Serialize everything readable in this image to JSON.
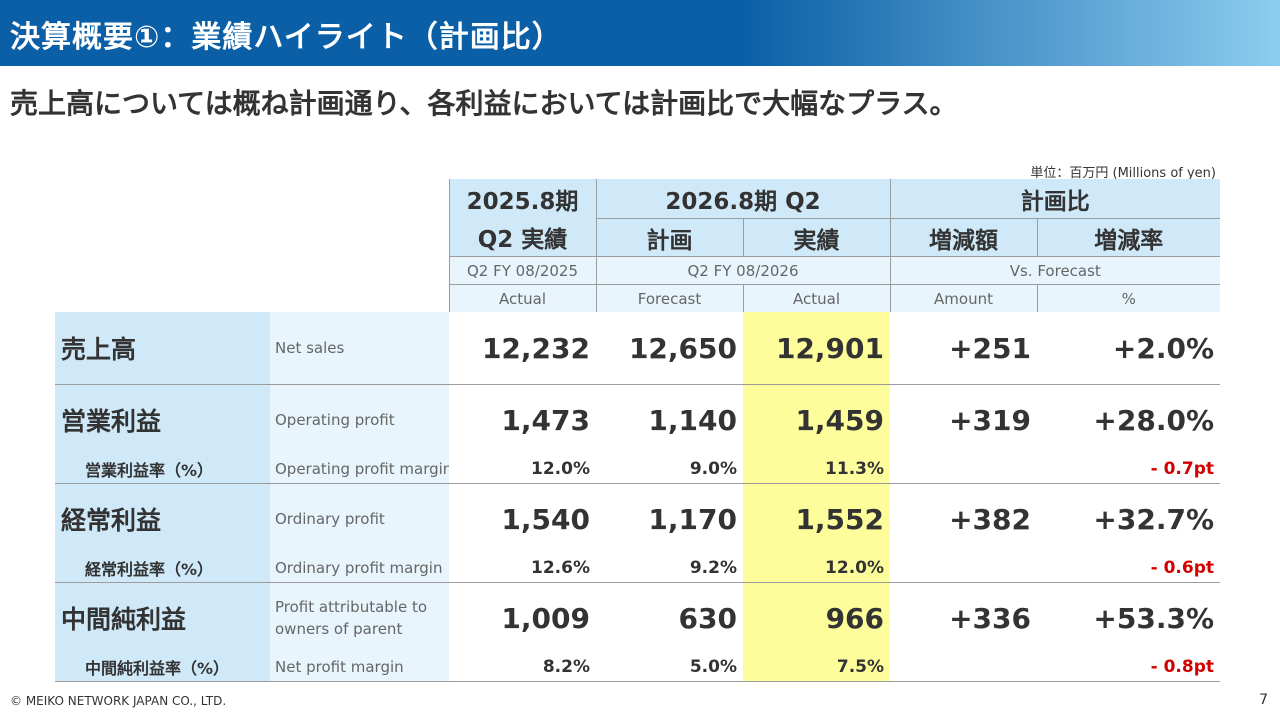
{
  "header": {
    "title": "決算概要①：業績ハイライト（計画比）"
  },
  "subtitle": "売上高については概ね計画通り、各利益においては計画比で大幅なプラス。",
  "unit_note": "単位：百万円 (Millions of yen)",
  "table": {
    "col_headers": {
      "prev_period": "2025.8期",
      "prev_actual_jp": "Q2 実績",
      "curr_period": "2026.8期 Q2",
      "curr_plan_jp": "計画",
      "curr_actual_jp": "実績",
      "vs_plan": "計画比",
      "diff_amount_jp": "増減額",
      "diff_rate_jp": "増減率",
      "prev_en": "Q2 FY 08/2025",
      "curr_en": "Q2 FY 08/2026",
      "vs_en": "Vs. Forecast",
      "actual_en": "Actual",
      "forecast_en": "Forecast",
      "actual_en2": "Actual",
      "amount_en": "Amount",
      "percent_en": "%"
    },
    "rows": {
      "net_sales": {
        "jp": "売上高",
        "en": "Net sales",
        "prev": "12,232",
        "plan": "12,650",
        "actual": "12,901",
        "diff": "+251",
        "rate": "+2.0%"
      },
      "operating_profit": {
        "jp": "営業利益",
        "en": "Operating profit",
        "prev": "1,473",
        "plan": "1,140",
        "actual": "1,459",
        "diff": "+319",
        "rate": "+28.0%"
      },
      "operating_margin": {
        "jp": "営業利益率（%）",
        "en": "Operating profit margin",
        "prev": "12.0%",
        "plan": "9.0%",
        "actual": "11.3%",
        "rate": "- 0.7pt"
      },
      "ordinary_profit": {
        "jp": "経常利益",
        "en": "Ordinary profit",
        "prev": "1,540",
        "plan": "1,170",
        "actual": "1,552",
        "diff": "+382",
        "rate": "+32.7%"
      },
      "ordinary_margin": {
        "jp": "経常利益率（%）",
        "en": "Ordinary profit margin",
        "prev": "12.6%",
        "plan": "9.2%",
        "actual": "12.0%",
        "rate": "- 0.6pt"
      },
      "net_profit": {
        "jp": "中間純利益",
        "en_line1": "Profit attributable to",
        "en_line2": "owners of parent",
        "prev": "1,009",
        "plan": "630",
        "actual": "966",
        "diff": "+336",
        "rate": "+53.3%"
      },
      "net_margin": {
        "jp": "中間純利益率（%）",
        "en": "Net profit margin",
        "prev": "8.2%",
        "plan": "5.0%",
        "actual": "7.5%",
        "rate": "- 0.8pt"
      }
    }
  },
  "footer": {
    "copyright": "© MEIKO NETWORK JAPAN CO., LTD.",
    "page": "7"
  }
}
